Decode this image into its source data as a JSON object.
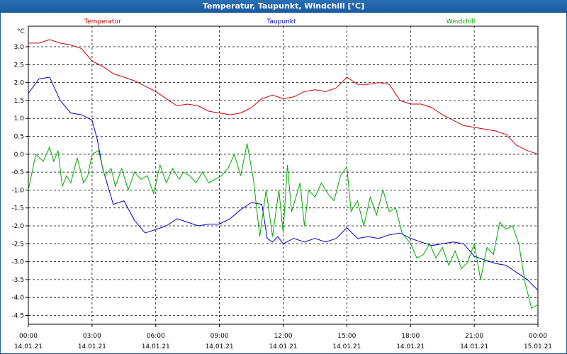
{
  "window": {
    "title": "Temperatur, Taupunkt, Windchill [°C]"
  },
  "colors": {
    "temperatur": "#cc0000",
    "taupunkt": "#0000cc",
    "windchill": "#00aa00",
    "grid": "#000000"
  },
  "chart_data": {
    "type": "line",
    "title": "Temperatur, Taupunkt, Windchill [°C]",
    "ylabel": "°C",
    "ylim": [
      -4.6,
      3.4
    ],
    "yticks": [
      3.0,
      2.5,
      2.0,
      1.5,
      1.0,
      0.5,
      0.0,
      -0.5,
      -1.0,
      -1.5,
      -2.0,
      -2.5,
      -3.0,
      -3.5,
      -4.0,
      -4.5
    ],
    "ytick_labels": [
      "3.0",
      "2.5",
      "2.0",
      "1.5",
      "1.0",
      "0.5",
      "0.0",
      "-0.5",
      "-1.0",
      "-1.5",
      "-2.0",
      "-2.5",
      "-3.0",
      "-3.5",
      "-4.0",
      "-4.5"
    ],
    "xlim": [
      0,
      24
    ],
    "xticks": [
      {
        "h": 0,
        "time": "00:00",
        "date": "14.01.21"
      },
      {
        "h": 3,
        "time": "03:00",
        "date": "14.01.21"
      },
      {
        "h": 6,
        "time": "06:00",
        "date": "14.01.21"
      },
      {
        "h": 9,
        "time": "09:00",
        "date": "14.01.21"
      },
      {
        "h": 12,
        "time": "12:00",
        "date": "14.01.21"
      },
      {
        "h": 15,
        "time": "15:00",
        "date": "14.01.21"
      },
      {
        "h": 18,
        "time": "18:00",
        "date": "14.01.21"
      },
      {
        "h": 21,
        "time": "21:00",
        "date": "14.01.21"
      },
      {
        "h": 24,
        "time": "00:00",
        "date": "15.01.21"
      }
    ],
    "grid": true,
    "series": [
      {
        "name": "Temperatur",
        "color": "#cc0000",
        "x": [
          0,
          0.5,
          1,
          1.5,
          2,
          2.5,
          3,
          3.5,
          4,
          4.5,
          5,
          5.5,
          6,
          6.5,
          7,
          7.5,
          8,
          8.5,
          9,
          9.5,
          10,
          10.5,
          11,
          11.5,
          12,
          12.5,
          13,
          13.5,
          14,
          14.5,
          15,
          15.5,
          16,
          16.5,
          17,
          17.5,
          18,
          18.5,
          19,
          19.5,
          20,
          20.5,
          21,
          21.5,
          22,
          22.5,
          23,
          23.5,
          24
        ],
        "values": [
          3.1,
          3.1,
          3.2,
          3.1,
          3.05,
          2.95,
          2.6,
          2.45,
          2.25,
          2.15,
          2.05,
          1.9,
          1.75,
          1.55,
          1.35,
          1.4,
          1.35,
          1.2,
          1.15,
          1.1,
          1.15,
          1.3,
          1.55,
          1.65,
          1.55,
          1.6,
          1.75,
          1.8,
          1.75,
          1.85,
          2.15,
          1.95,
          1.95,
          2.0,
          1.95,
          1.5,
          1.4,
          1.4,
          1.3,
          1.1,
          0.95,
          0.8,
          0.75,
          0.7,
          0.65,
          0.55,
          0.25,
          0.1,
          0.0
        ]
      },
      {
        "name": "Taupunkt",
        "color": "#0000cc",
        "x": [
          0,
          0.5,
          1,
          1.5,
          2,
          2.5,
          3,
          3.25,
          3.5,
          4,
          4.5,
          5,
          5.5,
          6,
          6.5,
          7,
          7.5,
          8,
          8.5,
          9,
          9.5,
          10,
          10.5,
          11,
          11.25,
          11.5,
          11.75,
          12,
          12.5,
          13,
          13.5,
          14,
          14.5,
          15,
          15.5,
          16,
          16.5,
          17,
          17.5,
          18,
          18.5,
          19,
          19.5,
          20,
          20.5,
          21,
          21.5,
          22,
          22.5,
          23,
          23.5,
          24
        ],
        "values": [
          1.7,
          2.1,
          2.15,
          1.5,
          1.15,
          1.1,
          0.95,
          0.4,
          -0.4,
          -1.4,
          -1.3,
          -1.85,
          -2.2,
          -2.1,
          -2.0,
          -1.8,
          -1.9,
          -2.0,
          -1.95,
          -1.95,
          -1.8,
          -1.55,
          -1.35,
          -1.4,
          -2.35,
          -2.45,
          -2.3,
          -2.5,
          -2.35,
          -2.45,
          -2.35,
          -2.45,
          -2.35,
          -2.05,
          -2.35,
          -2.3,
          -2.35,
          -2.25,
          -2.2,
          -2.35,
          -2.45,
          -2.55,
          -2.5,
          -2.45,
          -2.5,
          -2.85,
          -2.95,
          -3.05,
          -3.1,
          -3.3,
          -3.5,
          -3.8
        ]
      },
      {
        "name": "Windchill",
        "color": "#00aa00",
        "x": [
          0,
          0.35,
          0.7,
          1,
          1.2,
          1.4,
          1.6,
          1.8,
          2,
          2.3,
          2.6,
          2.8,
          3,
          3.3,
          3.6,
          3.9,
          4.1,
          4.4,
          4.7,
          5,
          5.3,
          5.6,
          5.9,
          6.2,
          6.5,
          6.8,
          7.1,
          7.3,
          7.6,
          7.9,
          8.2,
          8.5,
          8.8,
          9.1,
          9.4,
          9.7,
          10,
          10.3,
          10.6,
          10.9,
          11.2,
          11.5,
          11.8,
          12,
          12.2,
          12.4,
          12.6,
          12.8,
          13,
          13.2,
          13.5,
          13.8,
          14.1,
          14.4,
          14.7,
          15,
          15.2,
          15.5,
          15.8,
          16.1,
          16.4,
          16.7,
          17,
          17.3,
          17.6,
          18,
          18.3,
          18.6,
          18.9,
          19.2,
          19.5,
          19.8,
          20.1,
          20.4,
          20.7,
          21,
          21.3,
          21.6,
          21.9,
          22.2,
          22.5,
          22.8,
          23.1,
          23.4,
          23.7,
          24
        ],
        "values": [
          -1.0,
          0.0,
          -0.2,
          0.2,
          -0.2,
          0.1,
          -0.9,
          -0.6,
          -0.8,
          -0.1,
          -0.8,
          -0.6,
          0.0,
          0.1,
          -0.6,
          -0.4,
          -0.9,
          -0.4,
          -1.0,
          -0.5,
          -0.7,
          -0.6,
          -1.1,
          -0.3,
          -0.8,
          -0.4,
          -0.7,
          -0.5,
          -0.6,
          -0.8,
          -0.5,
          -0.8,
          -0.7,
          -0.6,
          -0.4,
          0.0,
          -0.6,
          0.3,
          -0.7,
          -2.3,
          -1.0,
          -2.3,
          -1.0,
          -2.2,
          -0.3,
          -1.6,
          -1.2,
          -0.8,
          -2.0,
          -1.0,
          -1.2,
          -0.8,
          -1.1,
          -1.3,
          -0.6,
          -0.35,
          -1.6,
          -1.3,
          -2.0,
          -1.2,
          -1.7,
          -1.0,
          -1.6,
          -1.5,
          -2.2,
          -2.5,
          -2.9,
          -2.8,
          -2.5,
          -2.9,
          -2.6,
          -3.1,
          -2.7,
          -3.2,
          -3.0,
          -2.5,
          -3.5,
          -2.6,
          -2.8,
          -1.9,
          -2.1,
          -2.0,
          -2.5,
          -3.6,
          -4.3,
          -4.2
        ]
      }
    ]
  }
}
